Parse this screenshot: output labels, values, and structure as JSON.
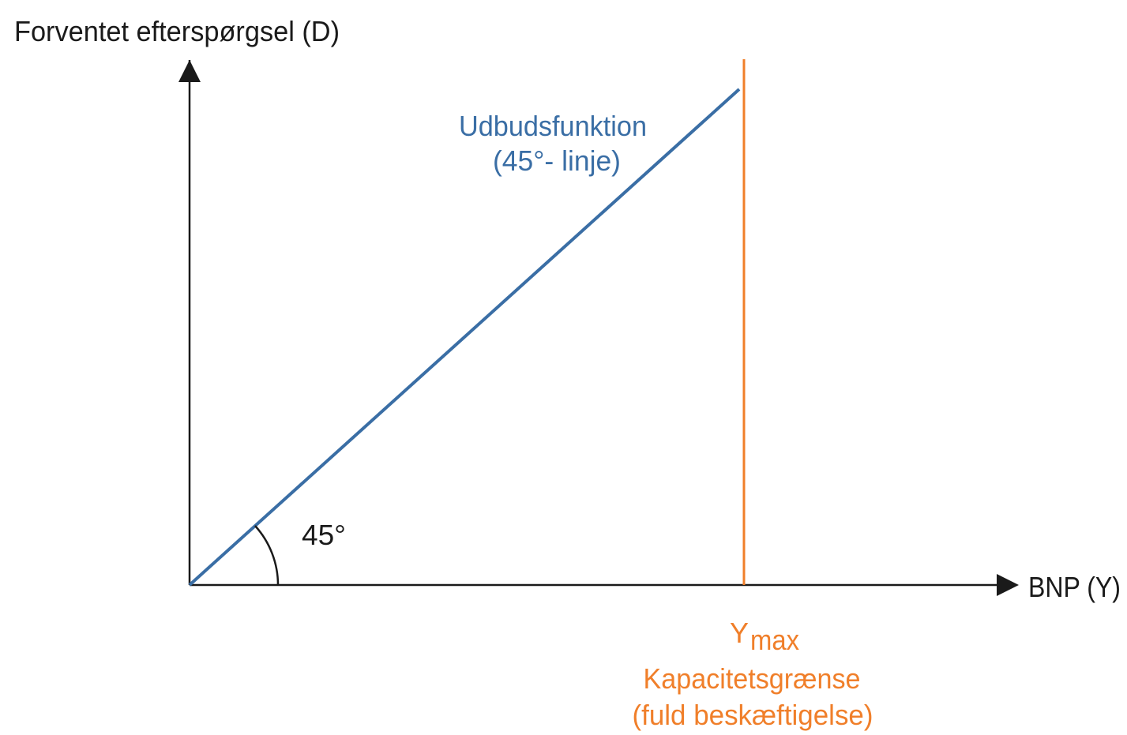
{
  "y_axis": {
    "label": "Forventet efterspørgsel (D)"
  },
  "x_axis": {
    "label": "BNP (Y)"
  },
  "supply_line": {
    "label": "Udbudsfunktion",
    "sublabel": "(45°- linje)"
  },
  "angle": {
    "label": "45°"
  },
  "capacity": {
    "symbol": "Y",
    "subscript": "max",
    "label": "Kapacitetsgrænse",
    "sublabel": "(fuld beskæftigelse)"
  }
}
